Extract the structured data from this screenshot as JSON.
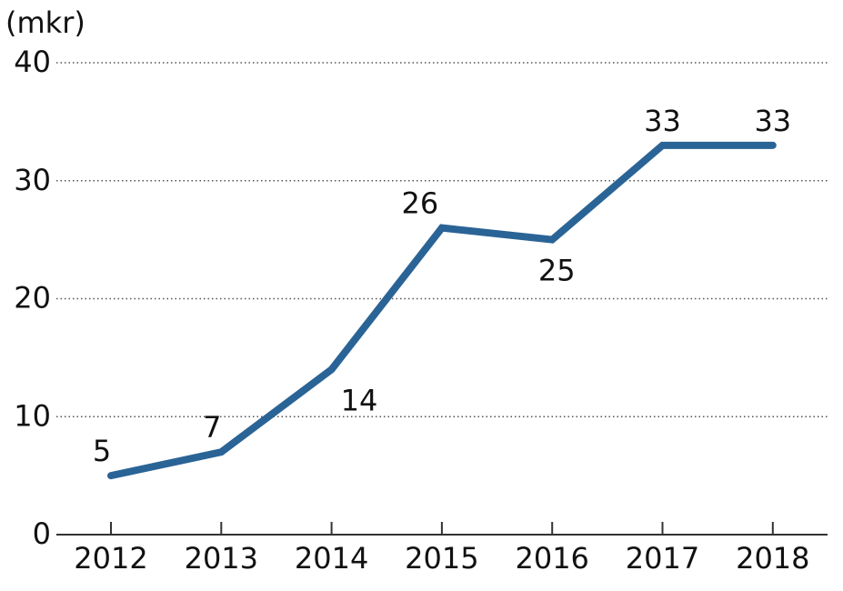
{
  "chart_data": {
    "type": "line",
    "unit_label": "(mkr)",
    "categories": [
      "2012",
      "2013",
      "2014",
      "2015",
      "2016",
      "2017",
      "2018"
    ],
    "series": [
      {
        "values": [
          5,
          7,
          14,
          26,
          25,
          33,
          33
        ],
        "color": "#2a6496"
      }
    ],
    "data_labels": [
      "5",
      "7",
      "14",
      "26",
      "25",
      "33",
      "33"
    ],
    "label_positions": [
      "above",
      "above",
      "below",
      "above",
      "below",
      "above",
      "above"
    ],
    "ylim": [
      0,
      40
    ],
    "yticks": [
      0,
      10,
      20,
      30,
      40
    ],
    "ytick_labels": [
      "0",
      "10",
      "20",
      "30",
      "40"
    ],
    "grid": "horizontal-dotted",
    "title": "",
    "xlabel": "",
    "ylabel": ""
  }
}
